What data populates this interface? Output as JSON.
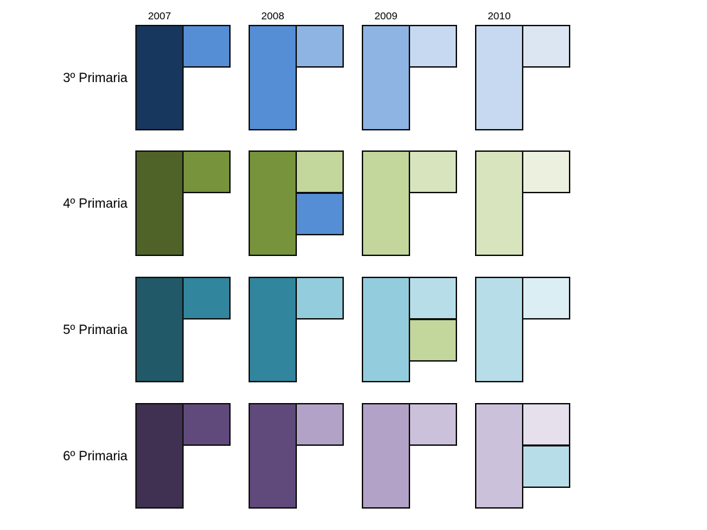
{
  "columns": [
    "2007",
    "2008",
    "2009",
    "2010"
  ],
  "rows": [
    "3º Primaria",
    "4º Primaria",
    "5º Primaria",
    "6º Primaria"
  ]
}
